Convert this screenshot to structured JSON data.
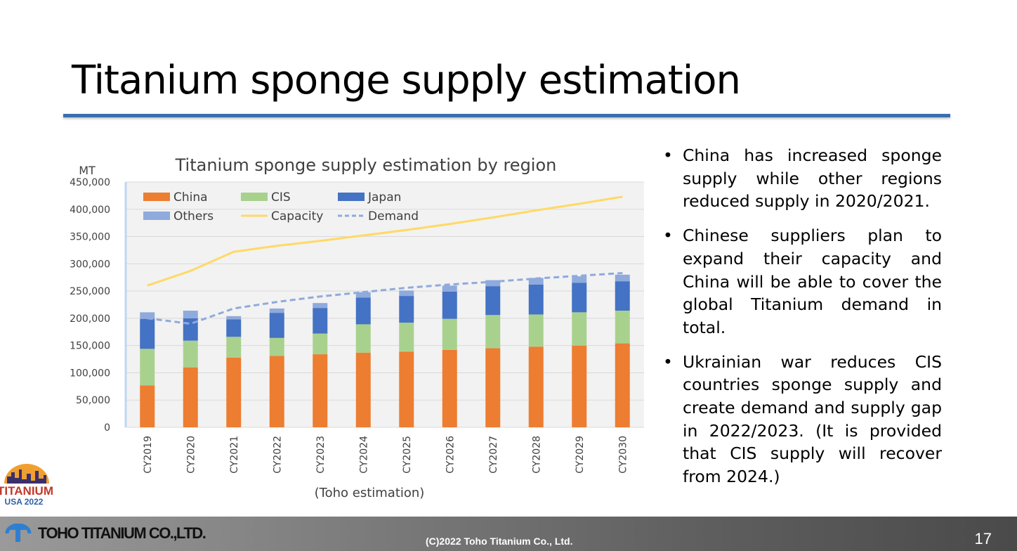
{
  "slide": {
    "title": "Titanium sponge supply estimation",
    "bullets": [
      "China has increased sponge supply while other regions reduced supply in 2020/2021.",
      "Chinese suppliers plan to expand their capacity and China will be able to cover the global Titanium demand in total.",
      "Ukrainian war reduces CIS countries sponge supply and create demand and supply gap in 2022/2023. (It is provided that CIS supply will recover from 2024.)"
    ],
    "bullet_marker": "•"
  },
  "footer": {
    "company": "TOHO TITANIUM CO.,LTD.",
    "copyright": "(C)2022 Toho Titanium Co., Ltd.",
    "page_number": "17"
  },
  "conference_logo": {
    "text_top": "TITANIUM",
    "text_bottom": "USA 2022",
    "colors": {
      "sun": "#f0a030",
      "text": "#c0392b",
      "bottom": "#2e5fa8"
    }
  },
  "chart_data": {
    "type": "bar",
    "stacked": true,
    "title": "Titanium sponge supply estimation by region",
    "ylabel": "MT",
    "subtitle": "(Toho estimation)",
    "ylim": [
      0,
      450000
    ],
    "yticks": [
      0,
      50000,
      100000,
      150000,
      200000,
      250000,
      300000,
      350000,
      400000,
      450000
    ],
    "ytick_labels": [
      "0",
      "50,000",
      "100,000",
      "150,000",
      "200,000",
      "250,000",
      "300,000",
      "350,000",
      "400,000",
      "450,000"
    ],
    "categories": [
      "CY2019",
      "CY2020",
      "CY2021",
      "CY2022",
      "CY2023",
      "CY2024",
      "CY2025",
      "CY2026",
      "CY2027",
      "CY2028",
      "CY2029",
      "CY2030"
    ],
    "series": [
      {
        "name": "China",
        "color": "#ed7d31",
        "values": [
          77000,
          110000,
          128000,
          131000,
          134000,
          137000,
          139000,
          142000,
          145000,
          148000,
          150000,
          154000
        ]
      },
      {
        "name": "CIS",
        "color": "#a9d18e",
        "values": [
          67000,
          49000,
          38000,
          33000,
          38000,
          52000,
          53000,
          57000,
          61000,
          59000,
          61000,
          60000
        ]
      },
      {
        "name": "Japan",
        "color": "#4472c4",
        "values": [
          55000,
          41000,
          32000,
          46000,
          47000,
          49000,
          49000,
          50000,
          53000,
          55000,
          54000,
          54000
        ]
      },
      {
        "name": "Others",
        "color": "#8faadc",
        "values": [
          12000,
          14000,
          6000,
          8000,
          9000,
          10000,
          10000,
          11000,
          11000,
          12000,
          12000,
          12000
        ]
      }
    ],
    "lines": [
      {
        "name": "Capacity",
        "color": "#ffd966",
        "style": "solid",
        "values": [
          260000,
          287000,
          322000,
          333000,
          342000,
          352000,
          362000,
          373000,
          385000,
          398000,
          410000,
          423000
        ]
      },
      {
        "name": "Demand",
        "color": "#8faadc",
        "style": "dashed",
        "values": [
          200000,
          190000,
          218000,
          230000,
          240000,
          248000,
          256000,
          262000,
          267000,
          273000,
          278000,
          283000
        ]
      }
    ],
    "legend_position": "top-left",
    "grid": true
  }
}
